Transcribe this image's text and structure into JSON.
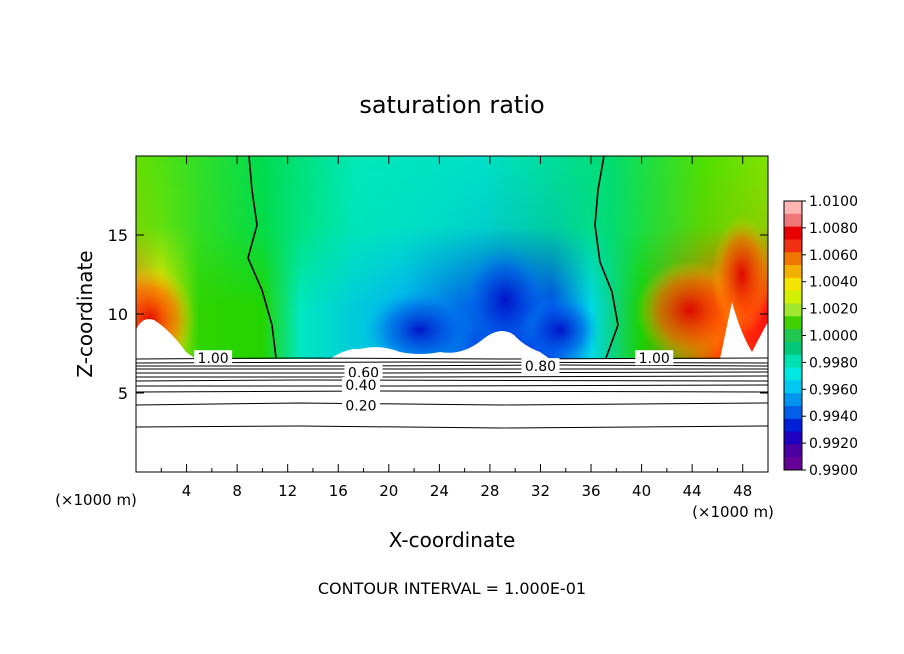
{
  "chart_data": {
    "type": "heatmap",
    "title": "saturation ratio",
    "xlabel": "X-coordinate",
    "ylabel": "Z-coordinate",
    "x_unit_left": "(×1000 m)",
    "x_unit_right": "(×1000 m)",
    "footer": "CONTOUR INTERVAL = 1.000E-01",
    "xlim": [
      0,
      50
    ],
    "ylim": [
      0,
      20
    ],
    "x_ticks": [
      4,
      8,
      12,
      16,
      20,
      24,
      28,
      32,
      36,
      40,
      44,
      48
    ],
    "x_tick_labels": [
      "4",
      "8",
      "12",
      "16",
      "20",
      "24",
      "28",
      "32",
      "36",
      "40",
      "44",
      "48"
    ],
    "y_ticks": [
      5,
      10,
      15
    ],
    "y_tick_labels": [
      "5",
      "10",
      "15"
    ],
    "colorbar": {
      "min": 0.99,
      "max": 1.01,
      "labels": [
        "1.0100",
        "1.0080",
        "1.0060",
        "1.0040",
        "1.0020",
        "1.0000",
        "0.9980",
        "0.9960",
        "0.9940",
        "0.9920",
        "0.9900"
      ],
      "colors": [
        "#ffb4b4",
        "#f07878",
        "#e80000",
        "#f03010",
        "#f07800",
        "#f4b000",
        "#f4e400",
        "#d0f000",
        "#a0e830",
        "#40d000",
        "#20c850",
        "#00c878",
        "#00e0b0",
        "#00e8e0",
        "#00c8f0",
        "#0096f0",
        "#0060e8",
        "#0020d8",
        "#2000c0",
        "#4a00a0",
        "#640096"
      ]
    },
    "contour_labels": [
      {
        "text": "1.00",
        "x": 6.1,
        "z": 7.2
      },
      {
        "text": "1.00",
        "x": 41.0,
        "z": 7.2
      },
      {
        "text": "0.80",
        "x": 32.0,
        "z": 6.7
      },
      {
        "text": "0.60",
        "x": 18.0,
        "z": 6.3
      },
      {
        "text": "0.40",
        "x": 17.8,
        "z": 5.5
      },
      {
        "text": "0.20",
        "x": 17.8,
        "z": 4.2
      }
    ]
  }
}
